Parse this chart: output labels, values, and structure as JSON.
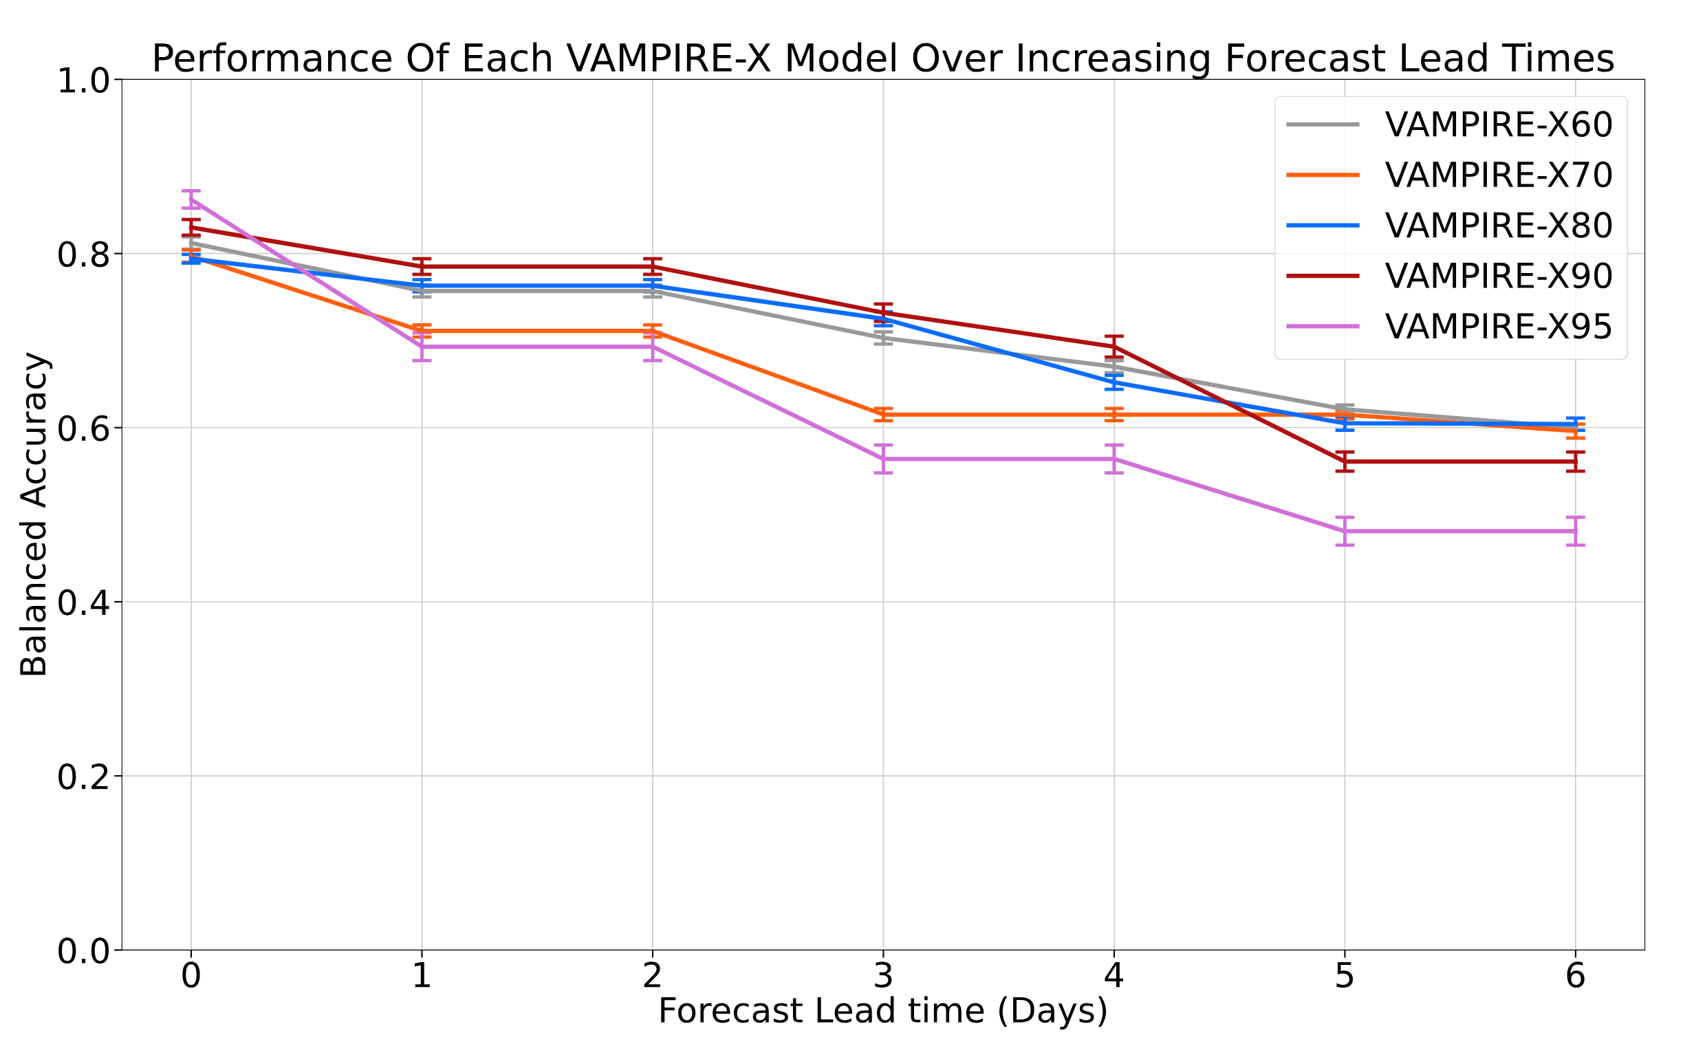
{
  "chart_data": {
    "type": "line",
    "title": "Performance Of Each VAMPIRE-X Model Over Increasing Forecast Lead Times",
    "xlabel": "Forecast Lead time (Days)",
    "ylabel": "Balanced Accuracy",
    "x": [
      0,
      1,
      2,
      3,
      4,
      5,
      6
    ],
    "series": [
      {
        "name": "VAMPIRE-X60",
        "color": "#999999",
        "values": [
          0.812,
          0.757,
          0.757,
          0.703,
          0.67,
          0.621,
          0.6
        ],
        "errors": [
          0.007,
          0.007,
          0.007,
          0.007,
          0.007,
          0.005,
          null
        ]
      },
      {
        "name": "VAMPIRE-X70",
        "color": "#ff5f0f",
        "values": [
          0.797,
          0.711,
          0.711,
          0.615,
          0.615,
          0.615,
          0.596
        ],
        "errors": [
          0.007,
          0.007,
          0.007,
          0.007,
          0.007,
          0.005,
          0.008
        ]
      },
      {
        "name": "VAMPIRE-X80",
        "color": "#0a6cff",
        "values": [
          0.794,
          0.763,
          0.763,
          0.725,
          0.652,
          0.605,
          0.604
        ],
        "errors": [
          0.005,
          0.007,
          0.007,
          0.008,
          0.008,
          0.008,
          0.007
        ]
      },
      {
        "name": "VAMPIRE-X90",
        "color": "#b01010",
        "values": [
          0.83,
          0.785,
          0.785,
          0.732,
          0.693,
          0.561,
          0.561
        ],
        "errors": [
          0.009,
          0.009,
          0.009,
          0.01,
          0.012,
          0.011,
          0.011
        ]
      },
      {
        "name": "VAMPIRE-X95",
        "color": "#d070d8",
        "values": [
          0.862,
          0.693,
          0.693,
          0.564,
          0.564,
          0.481,
          0.481
        ],
        "errors": [
          0.01,
          0.016,
          0.016,
          0.016,
          0.016,
          0.016,
          0.016
        ]
      }
    ],
    "xlim": [
      -0.3,
      6.3
    ],
    "ylim": [
      0.0,
      1.0
    ],
    "xticks": [
      0,
      1,
      2,
      3,
      4,
      5,
      6
    ],
    "yticks": [
      {
        "value": 0,
        "label": "0.0"
      },
      0.2,
      0.4,
      0.6,
      0.8,
      {
        "value": 1,
        "label": "1.0"
      }
    ],
    "grid": true,
    "legend": "top right",
    "marker": "none",
    "line_style": "solid"
  }
}
